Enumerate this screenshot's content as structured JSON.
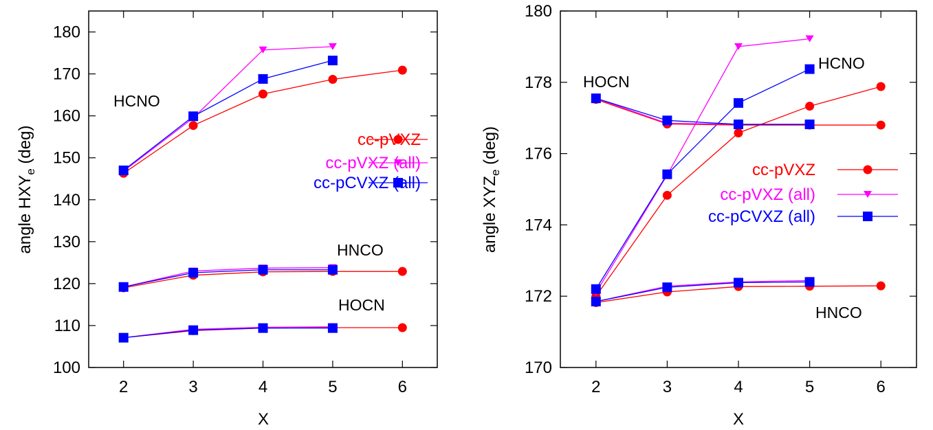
{
  "chart_data": [
    {
      "type": "line",
      "xlabel": "X",
      "ylabel_main": "angle HXY",
      "ylabel_sub": "e",
      "ylabel_unit": " (deg)",
      "xlim": [
        1.5,
        6.5
      ],
      "ylim": [
        100,
        185
      ],
      "xticks": [
        2,
        3,
        4,
        5,
        6
      ],
      "yticks": [
        100,
        110,
        120,
        130,
        140,
        150,
        160,
        170,
        180
      ],
      "legend_position": "right",
      "series_style": [
        {
          "name": "cc-pVXZ",
          "color": "#ff0000",
          "marker": "circle"
        },
        {
          "name": "cc-pVXZ (all)",
          "color": "#ff00ff",
          "marker": "triangle-down"
        },
        {
          "name": "cc-pCVXZ (all)",
          "color": "#0000ff",
          "marker": "square"
        }
      ],
      "molecules": [
        {
          "label": "HCNO",
          "series": [
            {
              "name": "cc-pVXZ",
              "x": [
                2,
                3,
                4,
                5,
                6
              ],
              "values": [
                146.3,
                157.7,
                165.2,
                168.7,
                170.9
              ]
            },
            {
              "name": "cc-pVXZ (all)",
              "x": [
                2,
                3,
                4,
                5
              ],
              "values": [
                146.8,
                159.5,
                175.7,
                176.5
              ]
            },
            {
              "name": "cc-pCVXZ (all)",
              "x": [
                2,
                3,
                4,
                5
              ],
              "values": [
                147.0,
                159.9,
                168.8,
                173.2
              ]
            }
          ]
        },
        {
          "label": "HNCO",
          "series": [
            {
              "name": "cc-pVXZ",
              "x": [
                2,
                3,
                4,
                5,
                6
              ],
              "values": [
                119.0,
                122.0,
                122.8,
                122.9,
                122.9
              ]
            },
            {
              "name": "cc-pVXZ (all)",
              "x": [
                2,
                3,
                4,
                5
              ],
              "values": [
                119.2,
                123.0,
                123.7,
                123.8
              ]
            },
            {
              "name": "cc-pCVXZ (all)",
              "x": [
                2,
                3,
                4,
                5
              ],
              "values": [
                119.2,
                122.6,
                123.3,
                123.3
              ]
            }
          ]
        },
        {
          "label": "HOCN",
          "series": [
            {
              "name": "cc-pVXZ",
              "x": [
                2,
                3,
                4,
                5,
                6
              ],
              "values": [
                107.1,
                108.8,
                109.4,
                109.5,
                109.5
              ]
            },
            {
              "name": "cc-pVXZ (all)",
              "x": [
                2,
                3,
                4,
                5
              ],
              "values": [
                107.1,
                109.1,
                109.6,
                109.7
              ]
            },
            {
              "name": "cc-pCVXZ (all)",
              "x": [
                2,
                3,
                4,
                5
              ],
              "values": [
                107.1,
                108.9,
                109.4,
                109.4
              ]
            }
          ]
        }
      ]
    },
    {
      "type": "line",
      "xlabel": "X",
      "ylabel_main": "angle XYZ",
      "ylabel_sub": "e",
      "ylabel_unit": " (deg)",
      "xlim": [
        1.5,
        6.5
      ],
      "ylim": [
        170,
        180
      ],
      "xticks": [
        2,
        3,
        4,
        5,
        6
      ],
      "yticks": [
        170,
        172,
        174,
        176,
        178,
        180
      ],
      "legend_position": "right",
      "series_style": [
        {
          "name": "cc-pVXZ",
          "color": "#ff0000",
          "marker": "circle"
        },
        {
          "name": "cc-pVXZ (all)",
          "color": "#ff00ff",
          "marker": "triangle-down"
        },
        {
          "name": "cc-pCVXZ (all)",
          "color": "#0000ff",
          "marker": "square"
        }
      ],
      "molecules": [
        {
          "label": "HCNO",
          "series": [
            {
              "name": "cc-pVXZ",
              "x": [
                2,
                3,
                4,
                5,
                6
              ],
              "values": [
                172.0,
                174.83,
                176.58,
                177.33,
                177.88
              ]
            },
            {
              "name": "cc-pVXZ (all)",
              "x": [
                2,
                3,
                4,
                5
              ],
              "values": [
                172.1,
                175.4,
                179.0,
                179.22
              ]
            },
            {
              "name": "cc-pCVXZ (all)",
              "x": [
                2,
                3,
                4,
                5
              ],
              "values": [
                172.2,
                175.42,
                177.42,
                178.37
              ]
            }
          ]
        },
        {
          "label": "HOCN",
          "series": [
            {
              "name": "cc-pVXZ",
              "x": [
                2,
                3,
                4,
                5,
                6
              ],
              "values": [
                177.52,
                176.83,
                176.8,
                176.8,
                176.8
              ]
            },
            {
              "name": "cc-pVXZ (all)",
              "x": [
                2,
                3,
                4,
                5
              ],
              "values": [
                177.55,
                176.85,
                176.82,
                176.82
              ]
            },
            {
              "name": "cc-pCVXZ (all)",
              "x": [
                2,
                3,
                4,
                5
              ],
              "values": [
                177.55,
                176.93,
                176.82,
                176.82
              ]
            }
          ]
        },
        {
          "label": "HNCO",
          "series": [
            {
              "name": "cc-pVXZ",
              "x": [
                2,
                3,
                4,
                5,
                6
              ],
              "values": [
                171.82,
                172.12,
                172.27,
                172.28,
                172.29
              ]
            },
            {
              "name": "cc-pVXZ (all)",
              "x": [
                2,
                3,
                4,
                5
              ],
              "values": [
                171.85,
                172.28,
                172.4,
                172.44
              ]
            },
            {
              "name": "cc-pCVXZ (all)",
              "x": [
                2,
                3,
                4,
                5
              ],
              "values": [
                171.85,
                172.25,
                172.38,
                172.4
              ]
            }
          ]
        }
      ]
    }
  ]
}
